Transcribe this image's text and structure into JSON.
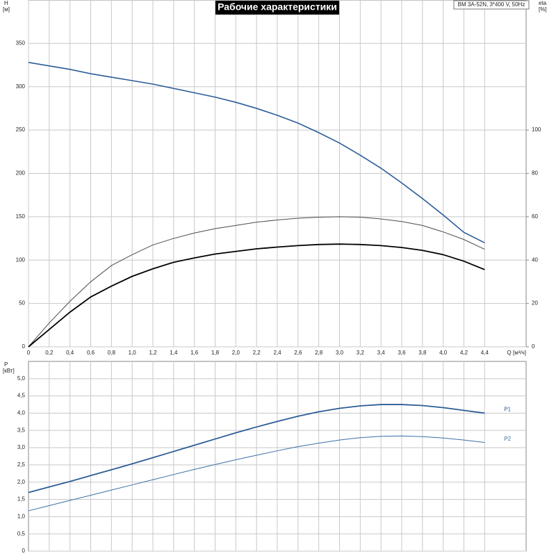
{
  "chart_data": [
    {
      "type": "line",
      "title": "Рабочие характеристики",
      "annotation": "BM 3A-52N, 3*400 V, 50Hz",
      "xlabel": "Q [м³/ч]",
      "ylabel": "H",
      "yunit": "[м]",
      "y2label": "eta",
      "y2unit": "[%]",
      "x": [
        0,
        0.2,
        0.4,
        0.6,
        0.8,
        1.0,
        1.2,
        1.4,
        1.6,
        1.8,
        2.0,
        2.2,
        2.4,
        2.6,
        2.8,
        3.0,
        3.2,
        3.4,
        3.6,
        3.8,
        4.0,
        4.2,
        4.4
      ],
      "series": [
        {
          "color": "#2b5c96",
          "values": [
            328,
            324,
            320,
            315,
            311,
            307,
            303,
            298,
            293,
            288,
            282,
            275,
            267,
            258,
            247,
            235,
            221,
            206,
            189,
            171,
            152,
            132,
            120
          ]
        },
        {
          "color": "#4a4a4a",
          "axis": "y2",
          "values": [
            0,
            11,
            21,
            30,
            37.5,
            42.5,
            47,
            50,
            52.5,
            54.5,
            56,
            57.5,
            58.5,
            59.3,
            59.8,
            60,
            59.8,
            59,
            57.8,
            56,
            53,
            49.5,
            45
          ]
        },
        {
          "color": "#000000",
          "axis": "y2",
          "values": [
            0,
            8,
            16,
            23,
            28,
            32.5,
            36,
            39,
            41,
            42.8,
            44,
            45.2,
            46,
            46.7,
            47.2,
            47.4,
            47.2,
            46.7,
            45.8,
            44.5,
            42.5,
            39.5,
            35.6
          ]
        }
      ],
      "xlim": [
        0,
        4.8
      ],
      "xticks": [
        0,
        {
          "value": 0.2,
          "label": "0,2"
        },
        {
          "value": 0.4,
          "label": "0,4"
        },
        {
          "value": 0.6,
          "label": "0,6"
        },
        {
          "value": 0.8,
          "label": "0,8"
        },
        {
          "value": 1.0,
          "label": "1,0"
        },
        {
          "value": 1.2,
          "label": "1,2"
        },
        {
          "value": 1.4,
          "label": "1,4"
        },
        {
          "value": 1.6,
          "label": "1,6"
        },
        {
          "value": 1.8,
          "label": "1,8"
        },
        {
          "value": 2.0,
          "label": "2,0"
        },
        {
          "value": 2.2,
          "label": "2,2"
        },
        {
          "value": 2.4,
          "label": "2,4"
        },
        {
          "value": 2.6,
          "label": "2,6"
        },
        {
          "value": 2.8,
          "label": "2,8"
        },
        {
          "value": 3.0,
          "label": "3,0"
        },
        {
          "value": 3.2,
          "label": "3,2"
        },
        {
          "value": 3.4,
          "label": "3,4"
        },
        {
          "value": 3.6,
          "label": "3,6"
        },
        {
          "value": 3.8,
          "label": "3,8"
        },
        {
          "value": 4.0,
          "label": "4,0"
        },
        {
          "value": 4.2,
          "label": "4,2"
        },
        {
          "value": 4.4,
          "label": "4,4"
        }
      ],
      "ylim": [
        0,
        400
      ],
      "yticks": [
        0,
        50,
        100,
        150,
        200,
        250,
        300,
        350
      ],
      "y2lim": [
        0,
        160
      ],
      "y2ticks": [
        0,
        20,
        40,
        60,
        80,
        100
      ],
      "grid": true
    },
    {
      "type": "line",
      "ylabel": "P",
      "yunit": "[кВт]",
      "x": [
        0,
        0.2,
        0.4,
        0.6,
        0.8,
        1.0,
        1.2,
        1.4,
        1.6,
        1.8,
        2.0,
        2.2,
        2.4,
        2.6,
        2.8,
        3.0,
        3.2,
        3.4,
        3.6,
        3.8,
        4.0,
        4.2,
        4.4
      ],
      "series": [
        {
          "name": "P1",
          "color": "#2b5c96",
          "values": [
            1.7,
            1.86,
            2.02,
            2.19,
            2.36,
            2.53,
            2.71,
            2.89,
            3.07,
            3.25,
            3.43,
            3.6,
            3.76,
            3.91,
            4.04,
            4.14,
            4.21,
            4.25,
            4.25,
            4.22,
            4.16,
            4.08,
            4.0
          ]
        },
        {
          "name": "P2",
          "color": "#3a6ea5",
          "values": [
            1.17,
            1.32,
            1.47,
            1.62,
            1.77,
            1.92,
            2.07,
            2.22,
            2.37,
            2.51,
            2.65,
            2.78,
            2.91,
            3.03,
            3.13,
            3.22,
            3.29,
            3.33,
            3.34,
            3.32,
            3.28,
            3.22,
            3.15
          ]
        }
      ],
      "xlim": [
        0,
        4.8
      ],
      "xgrid": [
        0.2,
        0.4,
        0.6,
        0.8,
        1.0,
        1.2,
        1.4,
        1.6,
        1.8,
        2.0,
        2.2,
        2.4,
        2.6,
        2.8,
        3.0,
        3.2,
        3.4,
        3.6,
        3.8,
        4.0,
        4.2,
        4.4
      ],
      "ylim": [
        0,
        5.5
      ],
      "yticks": [
        0,
        {
          "value": 0.5,
          "label": "0,5"
        },
        {
          "value": 1.0,
          "label": "1,0"
        },
        {
          "value": 1.5,
          "label": "1,5"
        },
        {
          "value": 2.0,
          "label": "2,0"
        },
        {
          "value": 2.5,
          "label": "2,5"
        },
        {
          "value": 3.0,
          "label": "3,0"
        },
        {
          "value": 3.5,
          "label": "3,5"
        },
        {
          "value": 4.0,
          "label": "4,0"
        },
        {
          "value": 4.5,
          "label": "4,5"
        },
        {
          "value": 5.0,
          "label": "5,0"
        }
      ],
      "grid": true
    }
  ]
}
